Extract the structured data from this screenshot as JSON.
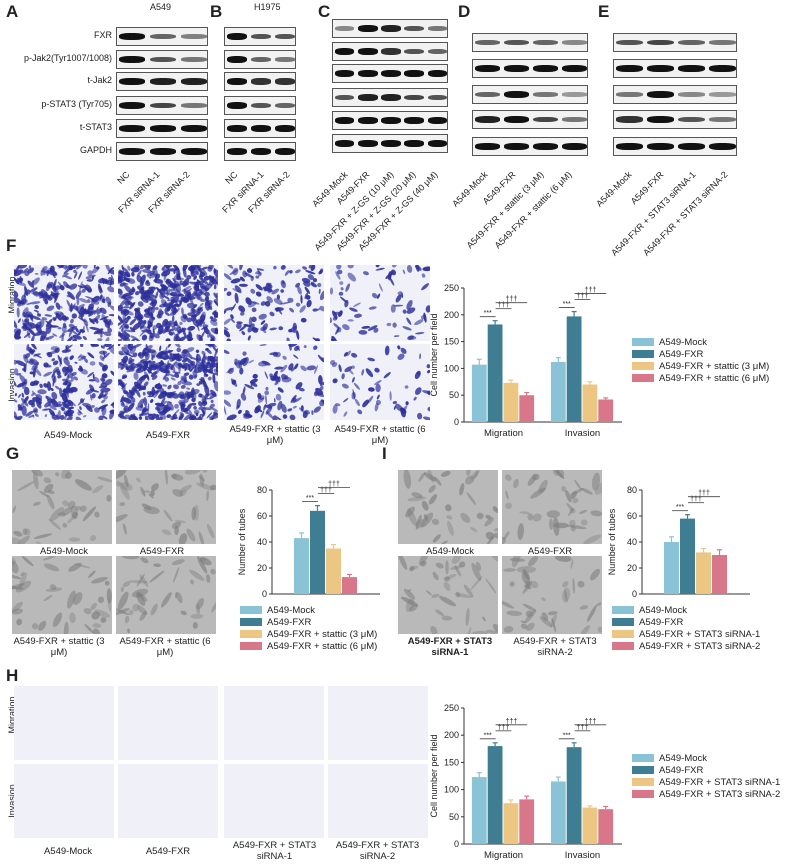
{
  "panels": {
    "A": "A",
    "B": "B",
    "C": "C",
    "D": "D",
    "E": "E",
    "F": "F",
    "G": "G",
    "H": "H",
    "I": "I"
  },
  "blot_titles": {
    "A": "A549",
    "B": "H1975"
  },
  "blot_rows": [
    "FXR",
    "p-Jak2(Tyr1007/1008)",
    "t-Jak2",
    "p-STAT3 (Tyr705)",
    "t-STAT3",
    "GAPDH"
  ],
  "blot_lanes": {
    "A": [
      "NC",
      "FXR siRNA-1",
      "FXR siRNA-2"
    ],
    "B": [
      "NC",
      "FXR siRNA-1",
      "FXR siRNA-2"
    ],
    "C": [
      "A549-Mock",
      "A549-FXR",
      "A549-FXR + Z-GS (10 μM)",
      "A549-FXR + Z-GS (20 μM)",
      "A549-FXR + Z-GS (40 μM)"
    ],
    "D": [
      "A549-Mock",
      "A549-FXR",
      "A549-FXR + stattic (3 μM)",
      "A549-FXR + stattic (6 μM)"
    ],
    "E": [
      "A549-Mock",
      "A549-FXR",
      "A549-FXR + STAT3 siRNA-1",
      "A549-FXR + STAT3 siRNA-2"
    ]
  },
  "row_labels": {
    "migration": "Migration",
    "invasion": "Invasion"
  },
  "captions": {
    "F": [
      "A549-Mock",
      "A549-FXR",
      "A549-FXR + stattic (3 μM)",
      "A549-FXR + stattic (6 μM)"
    ],
    "G": [
      "A549-Mock",
      "A549-FXR",
      "A549-FXR + stattic (3 μM)",
      "A549-FXR + stattic (6 μM)"
    ],
    "I": [
      "A549-Mock",
      "A549-FXR",
      "A549-FXR + STAT3 siRNA-1",
      "A549-FXR + STAT3 siRNA-2"
    ],
    "H": [
      "A549-Mock",
      "A549-FXR",
      "A549-FXR + STAT3 siRNA-1",
      "A549-FXR + STAT3 siRNA-2"
    ]
  },
  "colors": {
    "mock": "#8ac3d6",
    "fxr": "#3e7d92",
    "low": "#ecc783",
    "high": "#d9778a"
  },
  "chart_data": [
    {
      "id": "F",
      "type": "bar",
      "ylabel": "Cell number  per field",
      "ylim": [
        0,
        250
      ],
      "yticks": [
        0,
        50,
        100,
        150,
        200,
        250
      ],
      "categories": [
        "Migration",
        "Invasion"
      ],
      "series": [
        {
          "name": "A549-Mock",
          "values": [
            107,
            112
          ],
          "err": [
            10,
            8
          ]
        },
        {
          "name": "A549-FXR",
          "values": [
            182,
            197
          ],
          "err": [
            7,
            9
          ]
        },
        {
          "name": "A549-FXR + stattic (3 μM)",
          "values": [
            73,
            70
          ],
          "err": [
            5,
            5
          ]
        },
        {
          "name": "A549-FXR + stattic (6 μM)",
          "values": [
            50,
            42
          ],
          "err": [
            5,
            3
          ]
        }
      ],
      "annotations": [
        "***",
        "†††",
        "†††"
      ]
    },
    {
      "id": "G",
      "type": "bar",
      "ylabel": "Number of tubes",
      "ylim": [
        0,
        80
      ],
      "yticks": [
        0,
        20,
        40,
        60,
        80
      ],
      "categories": [
        ""
      ],
      "series": [
        {
          "name": "A549-Mock",
          "values": [
            43
          ],
          "err": [
            4
          ]
        },
        {
          "name": "A549-FXR",
          "values": [
            64
          ],
          "err": [
            4
          ]
        },
        {
          "name": "A549-FXR + stattic (3 μM)",
          "values": [
            35
          ],
          "err": [
            3
          ]
        },
        {
          "name": "A549-FXR + stattic (6 μM)",
          "values": [
            13
          ],
          "err": [
            2
          ]
        }
      ],
      "annotations": [
        "***",
        "†††",
        "†††"
      ]
    },
    {
      "id": "I",
      "type": "bar",
      "ylabel": "Number of tubes",
      "ylim": [
        0,
        80
      ],
      "yticks": [
        0,
        20,
        40,
        60,
        80
      ],
      "categories": [
        ""
      ],
      "series": [
        {
          "name": "A549-Mock",
          "values": [
            40
          ],
          "err": [
            4
          ]
        },
        {
          "name": "A549-FXR",
          "values": [
            58
          ],
          "err": [
            3
          ]
        },
        {
          "name": "A549-FXR + STAT3 siRNA-1",
          "values": [
            32
          ],
          "err": [
            3
          ]
        },
        {
          "name": "A549-FXR + STAT3 siRNA-2",
          "values": [
            30
          ],
          "err": [
            4
          ]
        }
      ],
      "annotations": [
        "***",
        "†††",
        "†††"
      ]
    },
    {
      "id": "H",
      "type": "bar",
      "ylabel": "Cell number  per field",
      "ylim": [
        0,
        250
      ],
      "yticks": [
        0,
        50,
        100,
        150,
        200,
        250
      ],
      "categories": [
        "Migration",
        "Invasion"
      ],
      "series": [
        {
          "name": "A549-Mock",
          "values": [
            123,
            115
          ],
          "err": [
            8,
            8
          ]
        },
        {
          "name": "A549-FXR",
          "values": [
            180,
            178
          ],
          "err": [
            6,
            8
          ]
        },
        {
          "name": "A549-FXR + STAT3 siRNA-1",
          "values": [
            75,
            67
          ],
          "err": [
            6,
            3
          ]
        },
        {
          "name": "A549-FXR + STAT3 siRNA-2",
          "values": [
            82,
            64
          ],
          "err": [
            6,
            5
          ]
        }
      ],
      "annotations": [
        "***",
        "†††",
        "†††"
      ]
    }
  ]
}
